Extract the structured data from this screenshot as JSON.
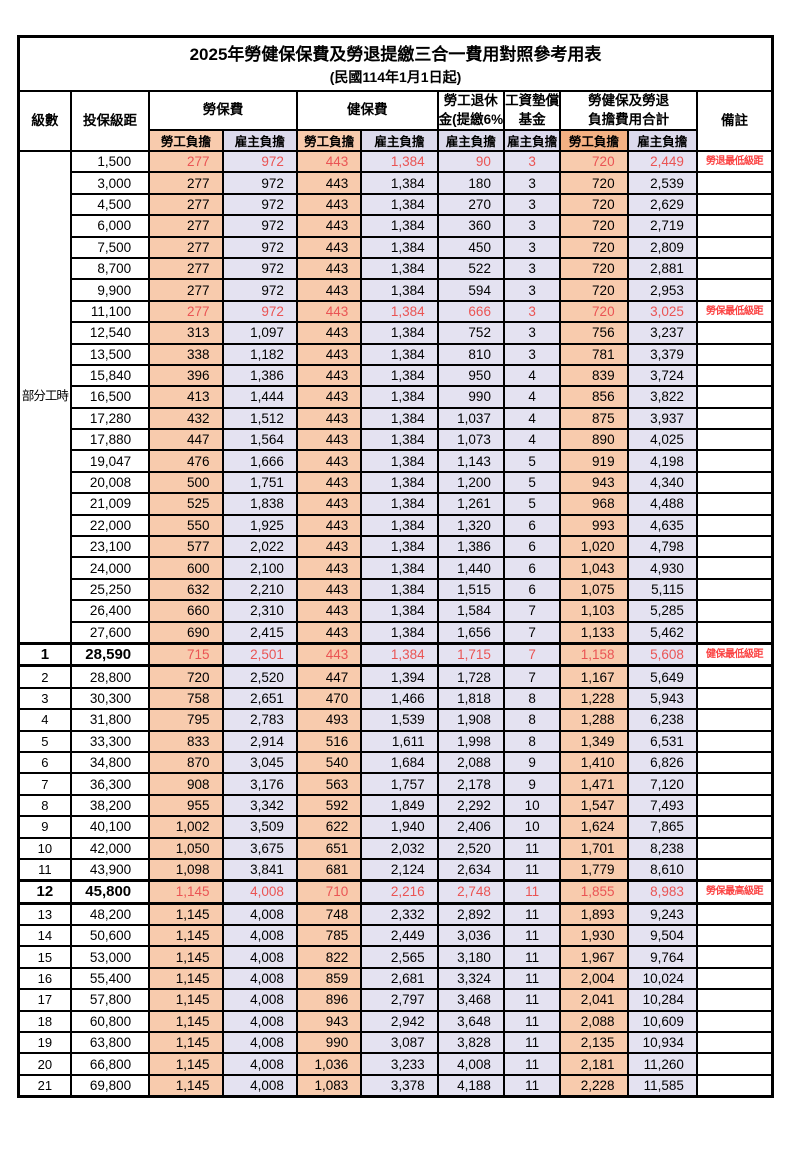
{
  "title": "2025年勞健保保費及勞退提繳三合一費用對照參考用表",
  "subtitle": "(民國114年1月1日起)",
  "header": {
    "level": "級數",
    "bracket": "投保級距",
    "labor_insurance": "勞保費",
    "health_insurance": "健保費",
    "pension_line1": "勞工退休",
    "pension_line2": "金(提繳6%)",
    "wage_fund_line1": "工資墊償",
    "wage_fund_line2": "基金",
    "total_line1": "勞健保及勞退",
    "total_line2": "負擔費用合計",
    "remark": "備註",
    "employee_label": "勞工負擔",
    "employer_label": "雇主負擔"
  },
  "part_time": {
    "label": "部分工時",
    "row_span": 23
  },
  "colors": {
    "employee_fill": "#F8CBAD",
    "employee_total_header_fill": "#F4B183",
    "employer_fill": "#E4E2F1",
    "red_value": "#EA5454",
    "remark_red": "#FB4343",
    "grid": "#000000"
  },
  "row_columns": [
    "level",
    "bracket",
    "labor_employee",
    "labor_employer",
    "health_employee",
    "health_employer",
    "pension_employer",
    "fund_employer",
    "total_employee",
    "total_employer",
    "remark"
  ],
  "red_rows": [
    0,
    7,
    23,
    34
  ],
  "special_rows": [
    23,
    34
  ],
  "rows": [
    [
      "",
      "1,500",
      "277",
      "972",
      "443",
      "1,384",
      "90",
      "3",
      "720",
      "2,449",
      "勞退最低級距"
    ],
    [
      "",
      "3,000",
      "277",
      "972",
      "443",
      "1,384",
      "180",
      "3",
      "720",
      "2,539",
      ""
    ],
    [
      "",
      "4,500",
      "277",
      "972",
      "443",
      "1,384",
      "270",
      "3",
      "720",
      "2,629",
      ""
    ],
    [
      "",
      "6,000",
      "277",
      "972",
      "443",
      "1,384",
      "360",
      "3",
      "720",
      "2,719",
      ""
    ],
    [
      "",
      "7,500",
      "277",
      "972",
      "443",
      "1,384",
      "450",
      "3",
      "720",
      "2,809",
      ""
    ],
    [
      "",
      "8,700",
      "277",
      "972",
      "443",
      "1,384",
      "522",
      "3",
      "720",
      "2,881",
      ""
    ],
    [
      "",
      "9,900",
      "277",
      "972",
      "443",
      "1,384",
      "594",
      "3",
      "720",
      "2,953",
      ""
    ],
    [
      "",
      "11,100",
      "277",
      "972",
      "443",
      "1,384",
      "666",
      "3",
      "720",
      "3,025",
      "勞保最低級距"
    ],
    [
      "",
      "12,540",
      "313",
      "1,097",
      "443",
      "1,384",
      "752",
      "3",
      "756",
      "3,237",
      ""
    ],
    [
      "",
      "13,500",
      "338",
      "1,182",
      "443",
      "1,384",
      "810",
      "3",
      "781",
      "3,379",
      ""
    ],
    [
      "",
      "15,840",
      "396",
      "1,386",
      "443",
      "1,384",
      "950",
      "4",
      "839",
      "3,724",
      ""
    ],
    [
      "",
      "16,500",
      "413",
      "1,444",
      "443",
      "1,384",
      "990",
      "4",
      "856",
      "3,822",
      ""
    ],
    [
      "",
      "17,280",
      "432",
      "1,512",
      "443",
      "1,384",
      "1,037",
      "4",
      "875",
      "3,937",
      ""
    ],
    [
      "",
      "17,880",
      "447",
      "1,564",
      "443",
      "1,384",
      "1,073",
      "4",
      "890",
      "4,025",
      ""
    ],
    [
      "",
      "19,047",
      "476",
      "1,666",
      "443",
      "1,384",
      "1,143",
      "5",
      "919",
      "4,198",
      ""
    ],
    [
      "",
      "20,008",
      "500",
      "1,751",
      "443",
      "1,384",
      "1,200",
      "5",
      "943",
      "4,340",
      ""
    ],
    [
      "",
      "21,009",
      "525",
      "1,838",
      "443",
      "1,384",
      "1,261",
      "5",
      "968",
      "4,488",
      ""
    ],
    [
      "",
      "22,000",
      "550",
      "1,925",
      "443",
      "1,384",
      "1,320",
      "6",
      "993",
      "4,635",
      ""
    ],
    [
      "",
      "23,100",
      "577",
      "2,022",
      "443",
      "1,384",
      "1,386",
      "6",
      "1,020",
      "4,798",
      ""
    ],
    [
      "",
      "24,000",
      "600",
      "2,100",
      "443",
      "1,384",
      "1,440",
      "6",
      "1,043",
      "4,930",
      ""
    ],
    [
      "",
      "25,250",
      "632",
      "2,210",
      "443",
      "1,384",
      "1,515",
      "6",
      "1,075",
      "5,115",
      ""
    ],
    [
      "",
      "26,400",
      "660",
      "2,310",
      "443",
      "1,384",
      "1,584",
      "7",
      "1,103",
      "5,285",
      ""
    ],
    [
      "",
      "27,600",
      "690",
      "2,415",
      "443",
      "1,384",
      "1,656",
      "7",
      "1,133",
      "5,462",
      ""
    ],
    [
      "1",
      "28,590",
      "715",
      "2,501",
      "443",
      "1,384",
      "1,715",
      "7",
      "1,158",
      "5,608",
      "健保最低級距"
    ],
    [
      "2",
      "28,800",
      "720",
      "2,520",
      "447",
      "1,394",
      "1,728",
      "7",
      "1,167",
      "5,649",
      ""
    ],
    [
      "3",
      "30,300",
      "758",
      "2,651",
      "470",
      "1,466",
      "1,818",
      "8",
      "1,228",
      "5,943",
      ""
    ],
    [
      "4",
      "31,800",
      "795",
      "2,783",
      "493",
      "1,539",
      "1,908",
      "8",
      "1,288",
      "6,238",
      ""
    ],
    [
      "5",
      "33,300",
      "833",
      "2,914",
      "516",
      "1,611",
      "1,998",
      "8",
      "1,349",
      "6,531",
      ""
    ],
    [
      "6",
      "34,800",
      "870",
      "3,045",
      "540",
      "1,684",
      "2,088",
      "9",
      "1,410",
      "6,826",
      ""
    ],
    [
      "7",
      "36,300",
      "908",
      "3,176",
      "563",
      "1,757",
      "2,178",
      "9",
      "1,471",
      "7,120",
      ""
    ],
    [
      "8",
      "38,200",
      "955",
      "3,342",
      "592",
      "1,849",
      "2,292",
      "10",
      "1,547",
      "7,493",
      ""
    ],
    [
      "9",
      "40,100",
      "1,002",
      "3,509",
      "622",
      "1,940",
      "2,406",
      "10",
      "1,624",
      "7,865",
      ""
    ],
    [
      "10",
      "42,000",
      "1,050",
      "3,675",
      "651",
      "2,032",
      "2,520",
      "11",
      "1,701",
      "8,238",
      ""
    ],
    [
      "11",
      "43,900",
      "1,098",
      "3,841",
      "681",
      "2,124",
      "2,634",
      "11",
      "1,779",
      "8,610",
      ""
    ],
    [
      "12",
      "45,800",
      "1,145",
      "4,008",
      "710",
      "2,216",
      "2,748",
      "11",
      "1,855",
      "8,983",
      "勞保最高級距"
    ],
    [
      "13",
      "48,200",
      "1,145",
      "4,008",
      "748",
      "2,332",
      "2,892",
      "11",
      "1,893",
      "9,243",
      ""
    ],
    [
      "14",
      "50,600",
      "1,145",
      "4,008",
      "785",
      "2,449",
      "3,036",
      "11",
      "1,930",
      "9,504",
      ""
    ],
    [
      "15",
      "53,000",
      "1,145",
      "4,008",
      "822",
      "2,565",
      "3,180",
      "11",
      "1,967",
      "9,764",
      ""
    ],
    [
      "16",
      "55,400",
      "1,145",
      "4,008",
      "859",
      "2,681",
      "3,324",
      "11",
      "2,004",
      "10,024",
      ""
    ],
    [
      "17",
      "57,800",
      "1,145",
      "4,008",
      "896",
      "2,797",
      "3,468",
      "11",
      "2,041",
      "10,284",
      ""
    ],
    [
      "18",
      "60,800",
      "1,145",
      "4,008",
      "943",
      "2,942",
      "3,648",
      "11",
      "2,088",
      "10,609",
      ""
    ],
    [
      "19",
      "63,800",
      "1,145",
      "4,008",
      "990",
      "3,087",
      "3,828",
      "11",
      "2,135",
      "10,934",
      ""
    ],
    [
      "20",
      "66,800",
      "1,145",
      "4,008",
      "1,036",
      "3,233",
      "4,008",
      "11",
      "2,181",
      "11,260",
      ""
    ],
    [
      "21",
      "69,800",
      "1,145",
      "4,008",
      "1,083",
      "3,378",
      "4,188",
      "11",
      "2,228",
      "11,585",
      ""
    ]
  ]
}
